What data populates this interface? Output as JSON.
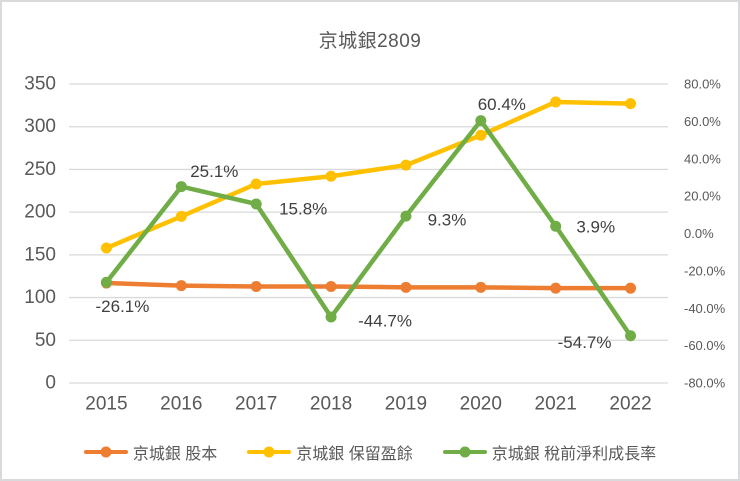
{
  "chart_data": {
    "type": "line",
    "title": "京城銀2809",
    "categories": [
      "2015",
      "2016",
      "2017",
      "2018",
      "2019",
      "2020",
      "2021",
      "2022"
    ],
    "series": [
      {
        "id": "capital",
        "name": "京城銀 股本",
        "axis": "left",
        "color": "#ED7D31",
        "values": [
          117,
          114,
          113,
          113,
          112,
          112,
          111,
          111
        ]
      },
      {
        "id": "retained-earnings",
        "name": "京城銀 保留盈餘",
        "axis": "left",
        "color": "#FFC000",
        "values": [
          158,
          195,
          233,
          242,
          255,
          290,
          329,
          327
        ]
      },
      {
        "id": "pretax-profit-growth",
        "name": "京城銀 稅前淨利成長率",
        "axis": "right",
        "color": "#70AD47",
        "values": [
          -26.1,
          25.1,
          15.8,
          -44.7,
          9.3,
          60.4,
          3.9,
          -54.7
        ],
        "data_labels": [
          "-26.1%",
          "25.1%",
          "15.8%",
          "-44.7%",
          "9.3%",
          "60.4%",
          "3.9%",
          "-54.7%"
        ]
      }
    ],
    "left_axis": {
      "min": 0,
      "max": 350,
      "step": 50,
      "tick_labels": [
        "350",
        "300",
        "250",
        "200",
        "150",
        "100",
        "50",
        "0"
      ]
    },
    "right_axis": {
      "min": -80,
      "max": 80,
      "step": 20,
      "tick_labels": [
        "80.0%",
        "60.0%",
        "40.0%",
        "20.0%",
        "0.0%",
        "-20.0%",
        "-40.0%",
        "-60.0%",
        "-80.0%"
      ]
    },
    "grid": true,
    "grid_color": "#d9d9d9",
    "tick_text_color": "#595959",
    "data_label_color": "#3f3f3f",
    "legend_position": "bottom"
  }
}
